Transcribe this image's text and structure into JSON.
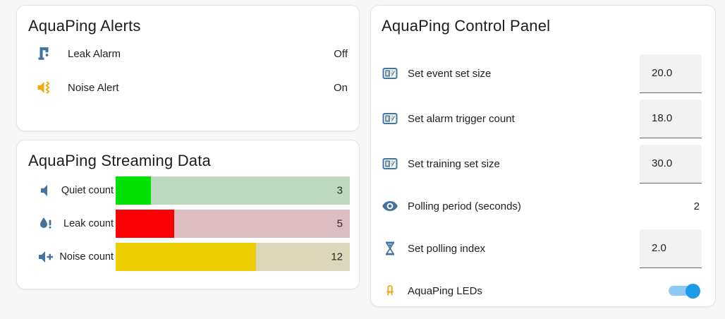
{
  "colors": {
    "page_bg": "#f7f7f8",
    "card_bg": "#ffffff",
    "icon_blue": "#44739e",
    "icon_amber": "#f2a90c",
    "text_primary": "#212121",
    "toggle_track_on": "#8ec8f3",
    "toggle_thumb_on": "#1d9ae8",
    "number_box_bg": "#f2f2f3",
    "number_box_underline": "#5f6368"
  },
  "alerts_card": {
    "title": "AquaPing Alerts",
    "rows": [
      {
        "icon": "water-pump-icon",
        "label": "Leak Alarm",
        "value": "Off"
      },
      {
        "icon": "volume-vibrate-icon",
        "label": "Noise Alert",
        "value": "On"
      }
    ]
  },
  "streaming_card": {
    "title": "AquaPing Streaming Data",
    "bars": [
      {
        "icon": "volume-mute-icon",
        "label": "Quiet count",
        "value": 3,
        "max": 20,
        "fill_color": "#00e103",
        "track_color": "#bdd8bf"
      },
      {
        "icon": "water-alert-icon",
        "label": "Leak count",
        "value": 5,
        "max": 20,
        "fill_color": "#fb0005",
        "track_color": "#dcbdc1"
      },
      {
        "icon": "volume-plus-icon",
        "label": "Noise count",
        "value": 12,
        "max": 20,
        "fill_color": "#edce00",
        "track_color": "#ddd7bc"
      }
    ]
  },
  "control_card": {
    "title": "AquaPing Control Panel",
    "rows": [
      {
        "icon": "counter-icon",
        "label": "Set event set size",
        "value": "20.0",
        "control": "number-box"
      },
      {
        "icon": "counter-icon",
        "label": "Set alarm trigger count",
        "value": "18.0",
        "control": "number-box"
      },
      {
        "icon": "counter-icon",
        "label": "Set training set size",
        "value": "30.0",
        "control": "number-box"
      },
      {
        "icon": "eye-icon",
        "label": "Polling period (seconds)",
        "value": "2",
        "control": "text"
      },
      {
        "icon": "hourglass-icon",
        "label": "Set polling index",
        "value": "2.0",
        "control": "number-box"
      },
      {
        "icon": "led-icon",
        "label": "AquaPing LEDs",
        "state": "on",
        "control": "toggle"
      }
    ]
  },
  "chart_data": {
    "type": "bar",
    "orientation": "horizontal",
    "title": "AquaPing Streaming Data",
    "categories": [
      "Quiet count",
      "Leak count",
      "Noise count"
    ],
    "values": [
      3,
      5,
      12
    ],
    "xlim": [
      0,
      20
    ],
    "bar_colors": [
      "#00e103",
      "#fb0005",
      "#edce00"
    ],
    "value_labels": [
      "3",
      "5",
      "12"
    ]
  }
}
